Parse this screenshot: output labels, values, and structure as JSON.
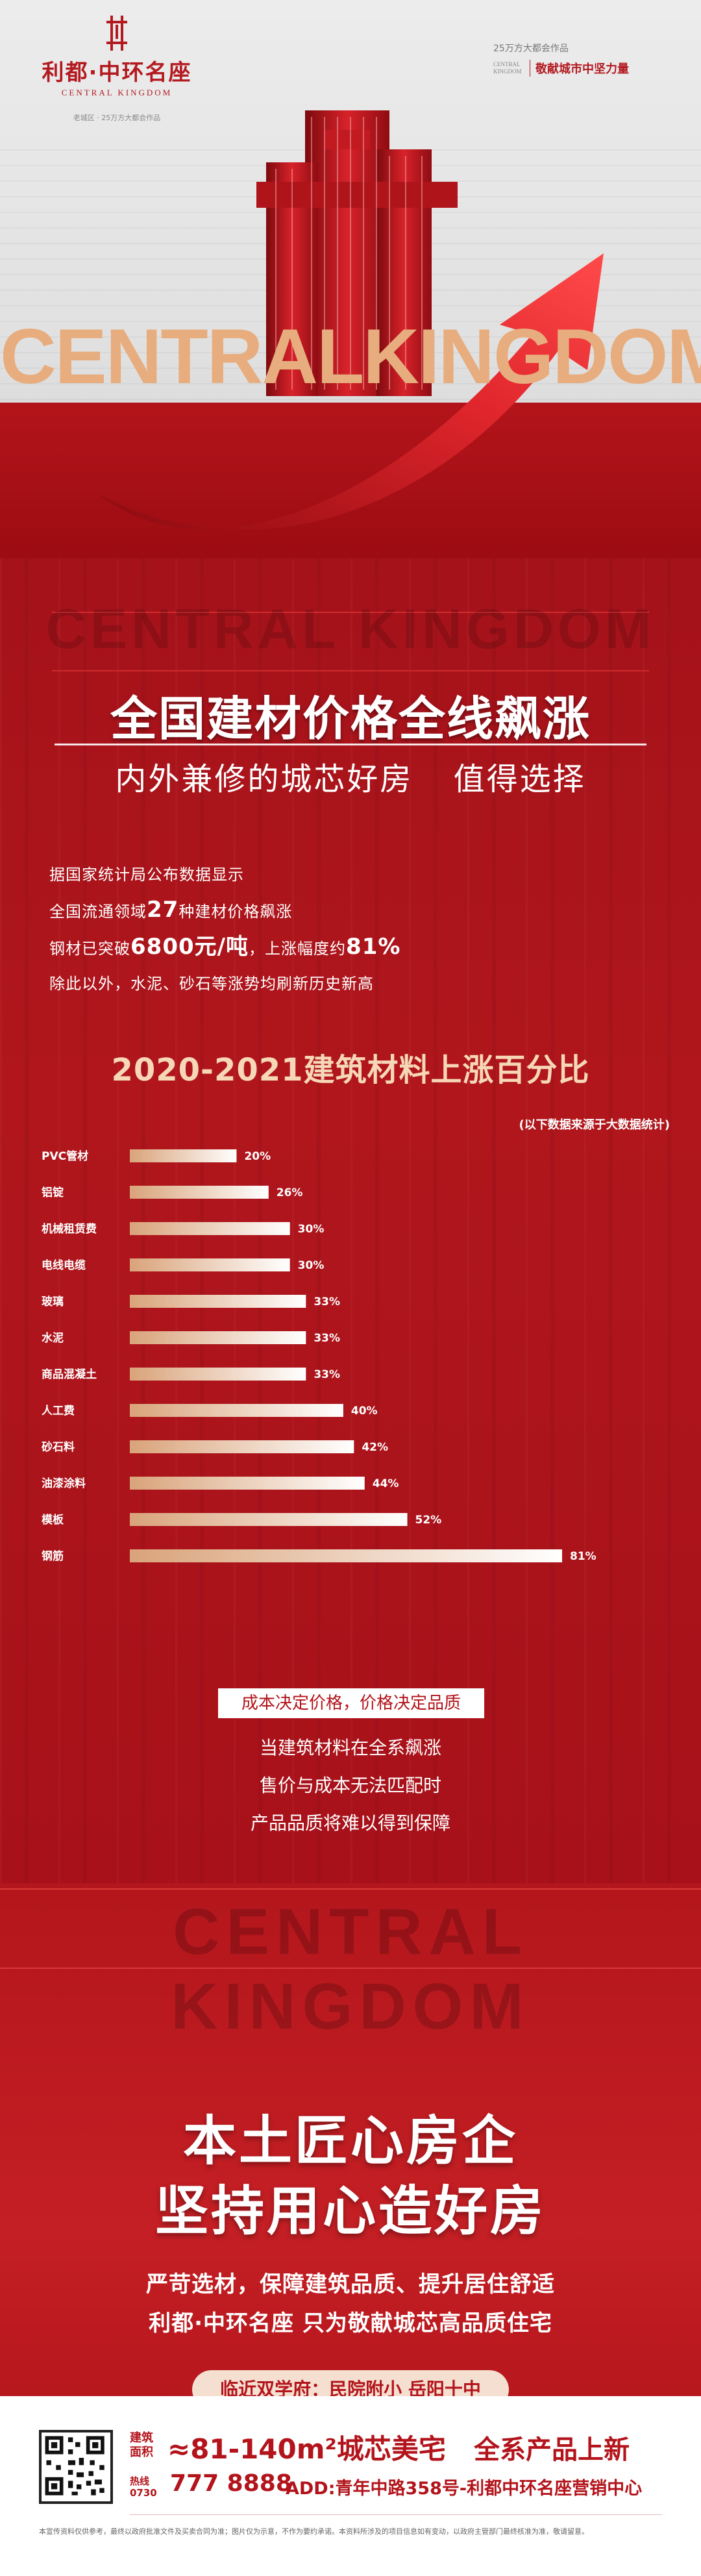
{
  "brand": {
    "title": "利都·中环名座",
    "en": "CENTRAL KINGDOM",
    "sub": "老城区 · 25万方大都会作品"
  },
  "slogan": {
    "small": "25万方大都会作品",
    "en": "CENTRAL KINGDOM",
    "main": "敬献城市中坚力量"
  },
  "hero": {
    "title": "CENTRALKINGDOM"
  },
  "section1": {
    "watermark": "CENTRAL KINGDOM",
    "headline": "全国建材价格全线飙涨",
    "subheadline_a": "内外兼修的城芯好房",
    "subheadline_b": "值得选择",
    "facts": {
      "line1": "据国家统计局公布数据显示",
      "line2_pre": "全国流通领域",
      "line2_num": "27",
      "line2_post": "种建材价格飙涨",
      "line3_pre": "钢材已突破",
      "line3_num": "6800元/吨",
      "line3_mid": "，上涨幅度约",
      "line3_pct": "81%",
      "line4": "除此以外，水泥、砂石等涨势均刷新历史新高"
    },
    "chart_note": "(以下数据来源于大数据统计)",
    "statement_box": "成本决定价格，价格决定品质",
    "statement_1": "当建筑材料在全系飙涨",
    "statement_2": "售价与成本无法匹配时",
    "statement_3": "产品品质将难以得到保障"
  },
  "chart_data": {
    "type": "bar",
    "orientation": "horizontal",
    "title": "2020-2021建筑材料上涨百分比",
    "categories": [
      "PVC管材",
      "铝锭",
      "机械租赁费",
      "电线电缆",
      "玻璃",
      "水泥",
      "商品混凝土",
      "人工费",
      "砂石料",
      "油漆涂料",
      "模板",
      "钢筋"
    ],
    "values": [
      20,
      26,
      30,
      30,
      33,
      33,
      33,
      40,
      42,
      44,
      52,
      81
    ],
    "value_suffix": "%",
    "xlim": [
      0,
      90
    ],
    "xticks": [
      "0%",
      "10%",
      "20%",
      "30%",
      "40%",
      "50%",
      "60%",
      "70%",
      "80%",
      "90%"
    ],
    "grid": false,
    "colors": {
      "bar_start": "#d9a37a",
      "bar_end": "#ffffff"
    }
  },
  "section2": {
    "watermark": "CENTRAL KINGDOM",
    "big_1": "本土匠心房企",
    "big_2": "坚持用心造好房",
    "body_1": "严苛选材，保障建筑品质、提升居住舒适",
    "body_2": "利都·中环名座  只为敬献城芯高品质住宅",
    "pill": "临近双学府：民院附小 岳阳十中"
  },
  "footer": {
    "area_label_1": "建筑",
    "area_label_2": "面积",
    "area": "≈81-140m²城芯美宅",
    "full": "全系产品上新",
    "phone_label_1": "热线",
    "phone_label_2": "0730",
    "phone": "777 8888",
    "address": "ADD:青年中路358号-利都中环名座营销中心",
    "disclaimer": "本宣传资料仅供参考，最终以政府批准文件及买卖合同为准；图片仅为示意，不作为要约承诺。本资料所涉及的项目信息如有变动，以政府主管部门最终核准为准，敬请留意。"
  },
  "colors": {
    "primary_red": "#b3141b",
    "gold": "#e7ad7e",
    "cream": "#f6d7b8"
  }
}
